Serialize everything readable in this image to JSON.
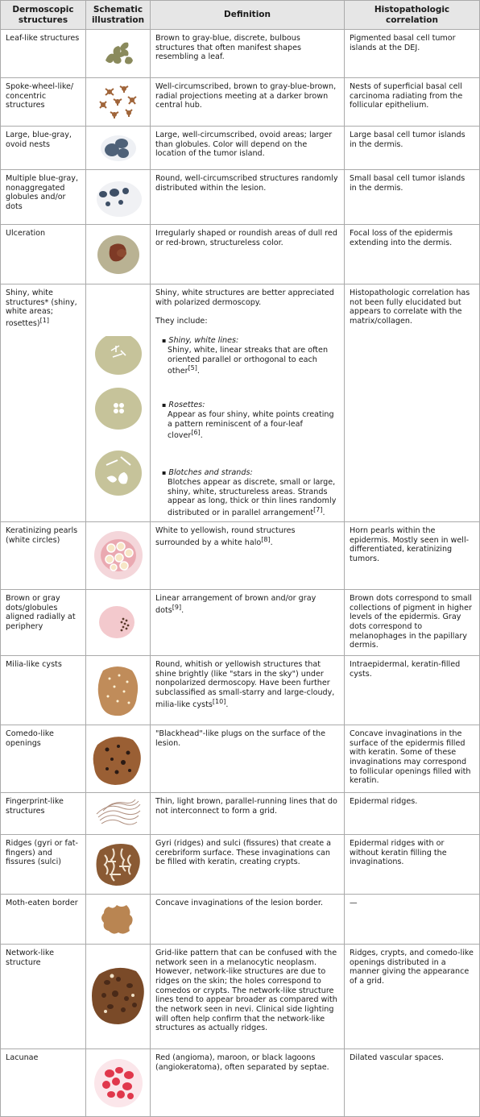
{
  "headers": [
    "Dermoscopic structures",
    "Schematic illustration",
    "Definition",
    "Histopathologic correlation"
  ],
  "rows": [
    {
      "structure": "Leaf-like structures",
      "illustration": "leaf-like-illustration",
      "definition": "Brown to gray-blue, discrete, bulbous structures that often manifest shapes resembling a leaf.",
      "correlation": "Pigmented basal cell tumor islands at the DEJ."
    },
    {
      "structure": "Spoke-wheel-like/ concentric structures",
      "illustration": "spoke-wheel-illustration",
      "definition": "Well-circumscribed, brown to gray-blue-brown, radial projections meeting at a darker brown central hub.",
      "correlation": "Nests of superficial basal cell carcinoma radiating from the follicular epithelium."
    },
    {
      "structure": "Large, blue-gray, ovoid nests",
      "illustration": "blue-gray-nests-illustration",
      "definition": "Large, well-circumscribed, ovoid areas; larger than globules. Color will depend on the location of the tumor island.",
      "correlation": "Large basal cell tumor islands in the dermis."
    },
    {
      "structure": "Multiple blue-gray, nonaggregated globules and/or dots",
      "illustration": "globules-illustration",
      "definition": "Round, well-circumscribed structures randomly distributed within the lesion.",
      "correlation": "Small basal cell tumor islands in the dermis."
    },
    {
      "structure": "Ulceration",
      "illustration": "ulceration-illustration",
      "definition": "Irregularly shaped or roundish areas of dull red or red-brown, structureless color.",
      "correlation": "Focal loss of the epidermis extending into the dermis."
    },
    {
      "structure": "Shiny, white structures* (shiny, white areas; rosettes)",
      "structure_ref": "[1]",
      "illustration": "shiny-white-illustration",
      "definition_intro": "Shiny, white structures are better appreciated with polarized dermoscopy.",
      "definition_includes": "They include:",
      "definition_items": [
        {
          "title": "Shiny, white lines:",
          "body": "Shiny, white, linear streaks that are often oriented parallel or orthogonal to each other",
          "ref": "[5]",
          "end": "."
        },
        {
          "title": "Rosettes:",
          "body": "Appear as four shiny, white points creating a pattern reminiscent of a four-leaf clover",
          "ref": "[6]",
          "end": "."
        },
        {
          "title": "Blotches and strands:",
          "body": "Blotches appear as discrete, small or large, shiny, white, structureless areas. Strands appear as long, thick or thin lines randomly distributed or in parallel arrangement",
          "ref": "[7]",
          "end": "."
        }
      ],
      "correlation": "Histopathologic correlation has not been fully elucidated but appears to correlate with the matrix/collagen."
    },
    {
      "structure": "Keratinizing pearls (white circles)",
      "illustration": "keratinizing-pearls-illustration",
      "definition": "White to yellowish, round structures surrounded by a white halo",
      "definition_ref": "[8]",
      "definition_end": ".",
      "correlation": "Horn pearls within the epidermis. Mostly seen in well-differentiated, keratinizing tumors."
    },
    {
      "structure": "Brown or gray dots/globules aligned radially at periphery",
      "illustration": "radial-dots-illustration",
      "definition": "Linear arrangement of brown and/or gray dots",
      "definition_ref": "[9]",
      "definition_end": ".",
      "correlation": "Brown dots correspond to small collections of pigment in higher levels of the epidermis. Gray dots correspond to melanophages in the papillary dermis."
    },
    {
      "structure": "Milia-like cysts",
      "illustration": "milia-cysts-illustration",
      "definition": "Round, whitish or yellowish structures that shine brightly (like \"stars in the sky\") under nonpolarized dermoscopy. Have been further subclassified as small-starry and large-cloudy, milia-like cysts",
      "definition_ref": "[10]",
      "definition_end": ".",
      "correlation": "Intraepidermal, keratin-filled cysts."
    },
    {
      "structure": "Comedo-like openings",
      "illustration": "comedo-openings-illustration",
      "definition": "\"Blackhead\"-like plugs on the surface of the lesion.",
      "correlation": "Concave invaginations in the surface of the epidermis filled with keratin. Some of these invaginations may correspond to follicular openings filled with keratin."
    },
    {
      "structure": "Fingerprint-like structures",
      "illustration": "fingerprint-illustration",
      "definition": "Thin, light brown, parallel-running lines that do not interconnect to form a grid.",
      "correlation": "Epidermal ridges."
    },
    {
      "structure": "Ridges (gyri or fat-fingers) and fissures (sulci)",
      "illustration": "ridges-fissures-illustration",
      "definition": "Gyri (ridges) and sulci (fissures) that create a cerebriform surface. These invaginations can be filled with keratin, creating crypts.",
      "correlation": "Epidermal ridges with or without keratin filling the invaginations."
    },
    {
      "structure": "Moth-eaten border",
      "illustration": "moth-eaten-illustration",
      "definition": "Concave invaginations of the lesion border.",
      "correlation": "—"
    },
    {
      "structure": "Network-like structure",
      "illustration": "network-like-illustration",
      "definition": "Grid-like pattern that can be confused with the network seen in a melanocytic neoplasm. However, network-like structures are due to ridges on the skin; the holes correspond to comedos or crypts. The network-like structure lines tend to appear broader as compared with the network seen in nevi. Clinical side lighting will often help confirm that the network-like structures as actually ridges.",
      "correlation": "Ridges, crypts, and comedo-like openings distributed in a manner giving the appearance of a grid."
    },
    {
      "structure": "Lacunae",
      "illustration": "lacunae-illustration",
      "definition": "Red (angioma), maroon, or black lagoons (angiokeratoma), often separated by septae.",
      "correlation": "Dilated vascular spaces."
    }
  ]
}
